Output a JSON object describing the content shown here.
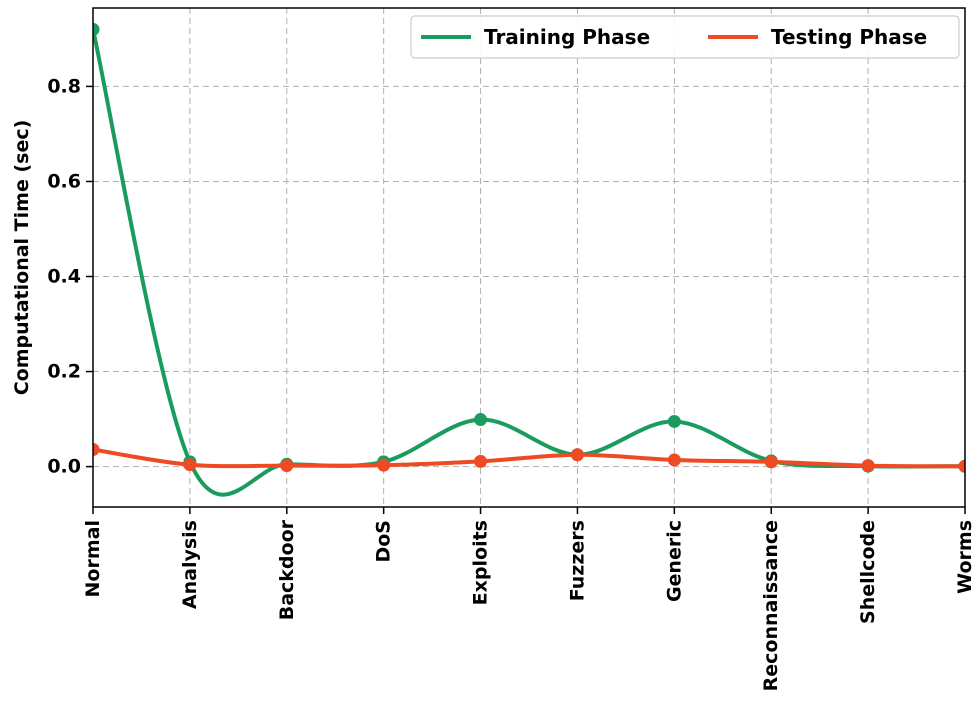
{
  "chart_data": {
    "type": "line",
    "categories": [
      "Normal",
      "Analysis",
      "Backdoor",
      "DoS",
      "Exploits",
      "Fuzzers",
      "Generic",
      "Reconnaissance",
      "Shellcode",
      "Worms"
    ],
    "series": [
      {
        "name": "Training Phase",
        "color": "#1a9c5e",
        "values": [
          0.92,
          0.01,
          0.005,
          0.01,
          0.099,
          0.025,
          0.095,
          0.012,
          0.001,
          0.001
        ]
      },
      {
        "name": "Testing Phase",
        "color": "#ee4b24",
        "values": [
          0.036,
          0.004,
          0.002,
          0.003,
          0.011,
          0.025,
          0.014,
          0.01,
          0.002,
          0.0005
        ]
      }
    ],
    "title": "",
    "xlabel": "",
    "ylabel": "Computational Time (sec)",
    "ylim": [
      -0.085,
      0.965
    ],
    "yticks": [
      0.0,
      0.2,
      0.4,
      0.6,
      0.8
    ],
    "ytick_labels": [
      "0.0",
      "0.2",
      "0.4",
      "0.6",
      "0.8"
    ],
    "grid": true,
    "legend": "top-right"
  }
}
